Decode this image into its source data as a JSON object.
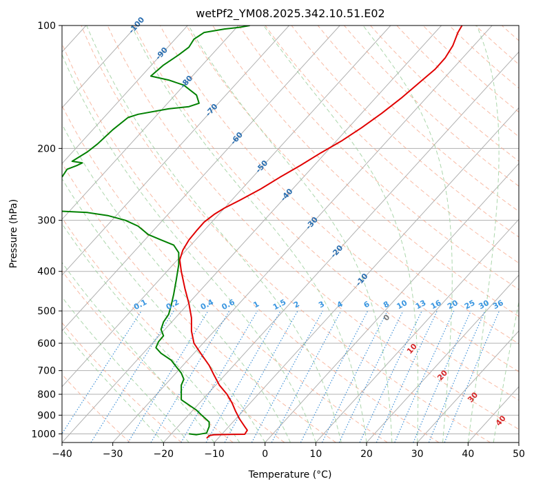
{
  "chart_data": {
    "type": "line",
    "title": "wetPf2_YM08.2025.342.10.51.E02",
    "xlabel": "Temperature (°C)",
    "ylabel": "Pressure (hPa)",
    "xlim": [
      -40,
      50
    ],
    "ylim": [
      1050,
      100
    ],
    "y_scale": "log",
    "x_ticks": [
      -40,
      -30,
      -20,
      -10,
      0,
      10,
      20,
      30,
      40,
      50
    ],
    "y_ticks": [
      100,
      200,
      300,
      400,
      500,
      600,
      700,
      800,
      900,
      1000
    ],
    "grid": true,
    "colors": {
      "temperature": "#e00000",
      "dewpoint": "#008000",
      "isotherm": "#b0b0b0",
      "dry_adiabat": "#f5a385",
      "moist_adiabat": "#9ccf9c",
      "mixing_ratio": "#3d8fd6",
      "isotherm_label": "#2a6eb0",
      "theta_e_label": "#d62728"
    },
    "series": [
      {
        "points": [
          [
            -11.5,
            1025
          ],
          [
            -11,
            1010
          ],
          [
            -10,
            1005
          ],
          [
            -7,
            1003
          ],
          [
            -4,
            1002
          ],
          [
            -3.5,
            980
          ],
          [
            -4,
            960
          ],
          [
            -5,
            920
          ],
          [
            -5.8,
            880
          ],
          [
            -6.5,
            840
          ],
          [
            -7.5,
            800
          ],
          [
            -9,
            760
          ],
          [
            -10,
            720
          ],
          [
            -11,
            680
          ],
          [
            -12.5,
            640
          ],
          [
            -14,
            600
          ],
          [
            -14.5,
            560
          ],
          [
            -14.5,
            520
          ],
          [
            -15,
            480
          ],
          [
            -15.8,
            440
          ],
          [
            -16.5,
            400
          ],
          [
            -16.8,
            375
          ],
          [
            -16.2,
            355
          ],
          [
            -15,
            335
          ],
          [
            -13.5,
            318
          ],
          [
            -12,
            303
          ],
          [
            -10,
            290
          ],
          [
            -8,
            280
          ],
          [
            -5,
            268
          ],
          [
            -1,
            252
          ],
          [
            3,
            235
          ],
          [
            7,
            220
          ],
          [
            11,
            205
          ],
          [
            15,
            192
          ],
          [
            19,
            178
          ],
          [
            23,
            164
          ],
          [
            27,
            150
          ],
          [
            31,
            136
          ],
          [
            33.5,
            128
          ],
          [
            35.5,
            120
          ],
          [
            37,
            112
          ],
          [
            38,
            104
          ],
          [
            38.8,
            100
          ]
        ]
      },
      {
        "points": [
          [
            -15,
            1000
          ],
          [
            -13.5,
            1005
          ],
          [
            -11.5,
            995
          ],
          [
            -11.3,
            980
          ],
          [
            -11,
            960
          ],
          [
            -11,
            935
          ],
          [
            -12.5,
            900
          ],
          [
            -13.5,
            875
          ],
          [
            -15,
            850
          ],
          [
            -16.5,
            825
          ],
          [
            -16.5,
            790
          ],
          [
            -16.5,
            760
          ],
          [
            -16,
            735
          ],
          [
            -16.5,
            710
          ],
          [
            -17.5,
            685
          ],
          [
            -18.5,
            660
          ],
          [
            -20.5,
            635
          ],
          [
            -21.5,
            615
          ],
          [
            -21,
            595
          ],
          [
            -20,
            575
          ],
          [
            -20.5,
            555
          ],
          [
            -20,
            532
          ],
          [
            -19,
            510
          ],
          [
            -18.5,
            485
          ],
          [
            -18,
            455
          ],
          [
            -17.5,
            420
          ],
          [
            -17,
            385
          ],
          [
            -17,
            360
          ],
          [
            -18,
            345
          ],
          [
            -20.5,
            335
          ],
          [
            -23,
            325
          ],
          [
            -25,
            310
          ],
          [
            -27.5,
            300
          ],
          [
            -31,
            292
          ],
          [
            -35,
            287
          ],
          [
            -40,
            285
          ]
        ]
      },
      {
        "points": [
          [
            -40,
            235
          ],
          [
            -39,
            225
          ],
          [
            -37,
            220
          ],
          [
            -36,
            217
          ],
          [
            -38,
            215
          ],
          [
            -35,
            204
          ],
          [
            -33,
            195
          ],
          [
            -30,
            180
          ],
          [
            -27,
            168
          ],
          [
            -25,
            165
          ],
          [
            -19,
            160
          ],
          [
            -15,
            158
          ],
          [
            -13,
            155
          ],
          [
            -13.5,
            148
          ],
          [
            -16,
            140
          ],
          [
            -19,
            136
          ],
          [
            -22.5,
            133
          ],
          [
            -20,
            125
          ],
          [
            -17,
            118
          ],
          [
            -15,
            113
          ],
          [
            -14,
            108
          ],
          [
            -13,
            106
          ],
          [
            -12,
            104
          ],
          [
            -8,
            102
          ],
          [
            -5,
            101
          ],
          [
            -3,
            100
          ]
        ]
      }
    ],
    "isotherm_labels": [
      "-100",
      "-90",
      "-80",
      "-70",
      "-60",
      "-50",
      "-40",
      "-30",
      "-20",
      "-10"
    ],
    "mixing_ratio_labels": [
      "0.1",
      "0.2",
      "0.4",
      "0.6",
      "1",
      "1.5",
      "2",
      "3",
      "4",
      "6",
      "8",
      "10",
      "13",
      "16",
      "20",
      "25",
      "30",
      "36"
    ],
    "theta_e_labels": [
      "0",
      "10",
      "20",
      "30",
      "40"
    ]
  }
}
